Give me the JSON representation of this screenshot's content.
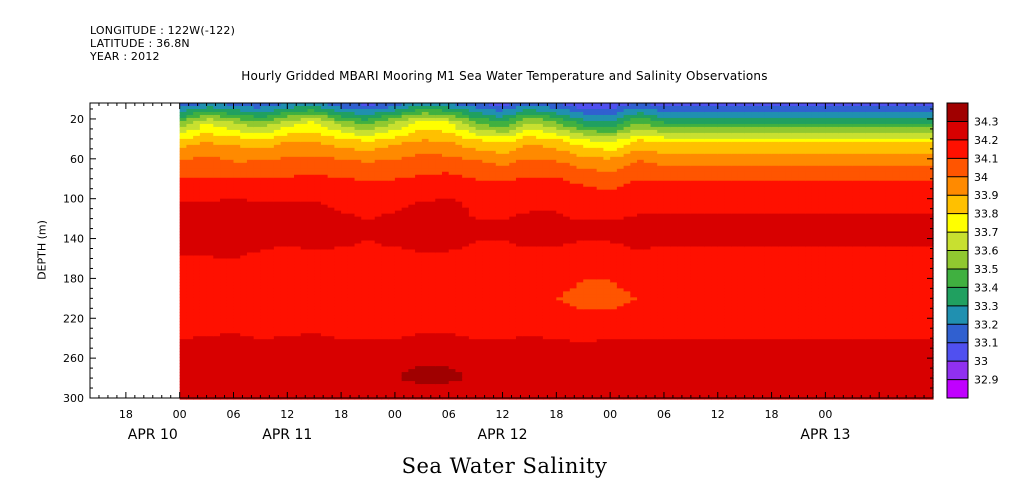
{
  "header": {
    "longitude": "LONGITUDE : 122W(-122)",
    "latitude": "LATITUDE : 36.8N",
    "year": "YEAR : 2012"
  },
  "chart_data": {
    "type": "heatmap",
    "title": "Hourly Gridded MBARI Mooring M1 Sea Water Temperature and Salinity Observations",
    "subtitle": "Sea Water Salinity",
    "ylabel": "DEPTH (m)",
    "x_unit": "hour of Apr 2012",
    "x_range_hours": [
      -10,
      84
    ],
    "data_start_hour": 0,
    "y_range": [
      4,
      300
    ],
    "y_reversed": true,
    "y_ticks": [
      20,
      60,
      100,
      140,
      180,
      220,
      260,
      300
    ],
    "x_ticks": [
      {
        "hour": -6,
        "label": "18"
      },
      {
        "hour": 0,
        "label": "00"
      },
      {
        "hour": 6,
        "label": "06"
      },
      {
        "hour": 12,
        "label": "12"
      },
      {
        "hour": 18,
        "label": "18"
      },
      {
        "hour": 24,
        "label": "00"
      },
      {
        "hour": 30,
        "label": "06"
      },
      {
        "hour": 36,
        "label": "12"
      },
      {
        "hour": 42,
        "label": "18"
      },
      {
        "hour": 48,
        "label": "00"
      },
      {
        "hour": 54,
        "label": "06"
      },
      {
        "hour": 60,
        "label": "12"
      },
      {
        "hour": 66,
        "label": "18"
      },
      {
        "hour": 72,
        "label": "00"
      }
    ],
    "date_labels": [
      {
        "hour": -3,
        "label": "APR 10"
      },
      {
        "hour": 12,
        "label": "APR 11"
      },
      {
        "hour": 36,
        "label": "APR 12"
      },
      {
        "hour": 72,
        "label": "APR 13"
      }
    ],
    "colorbar": {
      "levels": [
        32.9,
        33,
        33.1,
        33.2,
        33.3,
        33.4,
        33.5,
        33.6,
        33.7,
        33.8,
        33.9,
        34,
        34.1,
        34.2,
        34.3
      ],
      "labels": [
        "32.9",
        "33",
        "33.1",
        "33.2",
        "33.3",
        "33.4",
        "33.5",
        "33.6",
        "33.7",
        "33.8",
        "33.9",
        "34",
        "34.1",
        "34.2",
        "34.3"
      ],
      "colors": [
        "#c000ff",
        "#9030f0",
        "#5050f0",
        "#3060d0",
        "#2090b0",
        "#20a060",
        "#40b040",
        "#90c830",
        "#c8e030",
        "#ffff00",
        "#ffc000",
        "#ff8a00",
        "#ff5500",
        "#ff1000",
        "#d80000",
        "#a00000"
      ]
    },
    "columns": [
      {
        "hour": 0,
        "v": [
          33.1,
          33.5,
          33.85,
          34.02,
          34.12,
          34.2,
          34.22,
          34.24,
          34.18,
          34.12,
          34.1,
          34.14,
          34.2,
          34.26,
          34.3,
          34.2
        ]
      },
      {
        "hour": 3,
        "v": [
          33.2,
          33.7,
          33.9,
          34.04,
          34.12,
          34.2,
          34.23,
          34.26,
          34.18,
          34.12,
          34.1,
          34.15,
          34.21,
          34.28,
          34.3,
          34.22
        ]
      },
      {
        "hour": 6,
        "v": [
          33.15,
          33.6,
          33.88,
          34.0,
          34.13,
          34.21,
          34.24,
          34.27,
          34.2,
          34.12,
          34.1,
          34.15,
          34.22,
          34.28,
          34.3,
          34.24
        ]
      },
      {
        "hour": 9,
        "v": [
          33.1,
          33.5,
          33.85,
          34.01,
          34.12,
          34.2,
          34.22,
          34.24,
          34.16,
          34.12,
          34.1,
          34.14,
          34.2,
          34.26,
          34.3,
          34.24
        ]
      },
      {
        "hour": 12,
        "v": [
          33.18,
          33.65,
          33.9,
          34.03,
          34.12,
          34.2,
          34.22,
          34.22,
          34.15,
          34.12,
          34.1,
          34.15,
          34.21,
          34.28,
          34.3,
          34.22
        ]
      },
      {
        "hour": 15,
        "v": [
          33.22,
          33.72,
          33.9,
          34.05,
          34.13,
          34.2,
          34.22,
          34.24,
          34.16,
          34.12,
          34.1,
          34.15,
          34.22,
          34.28,
          34.3,
          34.24
        ]
      },
      {
        "hour": 18,
        "v": [
          33.1,
          33.55,
          33.86,
          34.02,
          34.12,
          34.19,
          34.21,
          34.22,
          34.16,
          34.12,
          34.1,
          34.14,
          34.2,
          34.26,
          34.29,
          34.22
        ]
      },
      {
        "hour": 21,
        "v": [
          33.05,
          33.45,
          33.82,
          34.0,
          34.1,
          34.18,
          34.2,
          34.2,
          34.15,
          34.11,
          34.1,
          34.13,
          34.2,
          34.26,
          34.29,
          34.22
        ]
      },
      {
        "hour": 24,
        "v": [
          33.12,
          33.6,
          33.88,
          34.02,
          34.11,
          34.19,
          34.21,
          34.22,
          34.16,
          34.12,
          34.1,
          34.14,
          34.2,
          34.27,
          34.3,
          34.24
        ]
      },
      {
        "hour": 27,
        "v": [
          33.25,
          33.75,
          33.92,
          34.05,
          34.13,
          34.2,
          34.22,
          34.25,
          34.16,
          34.12,
          34.1,
          34.15,
          34.22,
          34.29,
          34.32,
          34.24
        ]
      },
      {
        "hour": 30,
        "v": [
          33.2,
          33.7,
          33.9,
          34.05,
          34.14,
          34.21,
          34.22,
          34.25,
          34.16,
          34.12,
          34.1,
          34.15,
          34.22,
          34.29,
          34.32,
          34.24
        ]
      },
      {
        "hour": 33,
        "v": [
          33.1,
          33.5,
          33.84,
          34.01,
          34.11,
          34.19,
          34.2,
          34.2,
          34.15,
          34.11,
          34.1,
          34.14,
          34.2,
          34.26,
          34.29,
          34.24
        ]
      },
      {
        "hour": 36,
        "v": [
          33.05,
          33.4,
          33.8,
          33.98,
          34.1,
          34.18,
          34.2,
          34.2,
          34.15,
          34.11,
          34.1,
          34.13,
          34.2,
          34.26,
          34.28,
          34.22
        ]
      },
      {
        "hour": 39,
        "v": [
          33.15,
          33.62,
          33.88,
          34.03,
          34.12,
          34.19,
          34.21,
          34.22,
          34.16,
          34.12,
          34.1,
          34.14,
          34.21,
          34.27,
          34.29,
          34.22
        ]
      },
      {
        "hour": 42,
        "v": [
          33.1,
          33.5,
          33.85,
          34.01,
          34.12,
          34.19,
          34.21,
          34.22,
          34.15,
          34.12,
          34.1,
          34.14,
          34.2,
          34.26,
          34.28,
          34.22
        ]
      },
      {
        "hour": 45,
        "v": [
          33.0,
          33.35,
          33.75,
          33.96,
          34.08,
          34.17,
          34.2,
          34.2,
          34.14,
          34.1,
          34.08,
          34.12,
          34.19,
          34.25,
          34.27,
          34.22
        ]
      },
      {
        "hour": 48,
        "v": [
          33.0,
          33.3,
          33.7,
          33.94,
          34.06,
          34.16,
          34.2,
          34.2,
          34.15,
          34.1,
          34.08,
          34.12,
          34.2,
          34.26,
          34.28,
          34.22
        ]
      },
      {
        "hour": 51,
        "v": [
          33.1,
          33.5,
          33.84,
          34.01,
          34.11,
          34.18,
          34.21,
          34.23,
          34.16,
          34.12,
          34.1,
          34.14,
          34.2,
          34.26,
          34.3,
          34.24
        ]
      },
      {
        "hour": 54,
        "v": [
          33.05,
          33.4,
          33.8,
          33.98,
          34.1,
          34.18,
          34.21,
          34.22,
          34.16,
          34.12,
          34.1,
          34.14,
          34.2,
          34.26,
          34.29,
          34.24
        ]
      }
    ]
  }
}
